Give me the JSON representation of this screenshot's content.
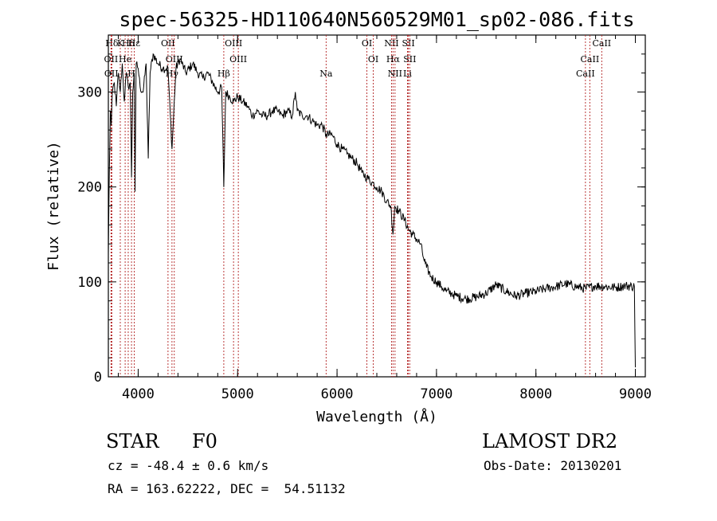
{
  "title": "spec-56325-HD110640N560529M01_sp02-086.fits",
  "footer": {
    "class": "STAR",
    "subclass": "F0",
    "survey": "LAMOST DR2",
    "cz": "cz = -48.4 ± 0.6 km/s",
    "obs_date": "Obs-Date: 20130201",
    "radec": "RA = 163.62222, DEC =  54.51132"
  },
  "chart_data": {
    "type": "line",
    "title": "spec-56325-HD110640N560529M01_sp02-086.fits",
    "xlabel": "Wavelength (Å)",
    "ylabel": "Flux (relative)",
    "xlim": [
      3700,
      9100
    ],
    "ylim": [
      0,
      360
    ],
    "xticks": [
      4000,
      5000,
      6000,
      7000,
      8000,
      9000
    ],
    "yticks": [
      0,
      100,
      200,
      300
    ],
    "grid": false,
    "line_color": "#000000",
    "marker_color": "#b22222",
    "series": [
      {
        "x": [
          3700,
          3710,
          3720,
          3730,
          3740,
          3760,
          3780,
          3800,
          3820,
          3840,
          3860,
          3880,
          3900,
          3920,
          3933,
          3945,
          3960,
          3968,
          3980,
          4000,
          4020,
          4050,
          4080,
          4101,
          4120,
          4150,
          4200,
          4250,
          4300,
          4340,
          4380,
          4420,
          4480,
          4550,
          4600,
          4650,
          4700,
          4750,
          4800,
          4840,
          4861,
          4880,
          4920,
          4960,
          5000,
          5050,
          5100,
          5150,
          5200,
          5250,
          5300,
          5350,
          5400,
          5450,
          5500,
          5550,
          5580,
          5600,
          5650,
          5700,
          5750,
          5800,
          5850,
          5890,
          5950,
          6000,
          6050,
          6100,
          6150,
          6200,
          6250,
          6300,
          6350,
          6400,
          6450,
          6500,
          6540,
          6563,
          6580,
          6620,
          6680,
          6720,
          6760,
          6800,
          6840,
          6870,
          6900,
          6950,
          7000,
          7050,
          7100,
          7150,
          7200,
          7300,
          7400,
          7500,
          7600,
          7700,
          7800,
          7900,
          8000,
          8100,
          8200,
          8300,
          8400,
          8500,
          8600,
          8700,
          8800,
          8900,
          8990,
          9000
        ],
        "values": [
          130,
          215,
          280,
          265,
          300,
          310,
          285,
          320,
          300,
          330,
          290,
          320,
          305,
          310,
          210,
          300,
          320,
          195,
          330,
          325,
          305,
          300,
          330,
          230,
          320,
          340,
          330,
          325,
          325,
          240,
          325,
          335,
          320,
          330,
          320,
          315,
          320,
          310,
          300,
          305,
          200,
          300,
          295,
          290,
          295,
          290,
          285,
          275,
          280,
          275,
          275,
          280,
          280,
          275,
          280,
          275,
          300,
          280,
          275,
          275,
          270,
          265,
          265,
          255,
          255,
          245,
          240,
          235,
          230,
          225,
          215,
          210,
          205,
          200,
          195,
          185,
          180,
          150,
          180,
          175,
          165,
          155,
          150,
          145,
          140,
          125,
          115,
          105,
          100,
          95,
          90,
          88,
          85,
          82,
          84,
          88,
          97,
          90,
          85,
          88,
          90,
          93,
          95,
          98,
          95,
          93,
          96,
          95,
          94,
          96,
          95,
          10
        ]
      }
    ],
    "line_markers": [
      {
        "label": "Hδ",
        "x": 3735,
        "row": 0
      },
      {
        "label": "K",
        "x": 3820,
        "row": 0
      },
      {
        "label": "Hδ",
        "x": 3900,
        "row": 0
      },
      {
        "label": "Hε",
        "x": 3960,
        "row": 0
      },
      {
        "label": "OII",
        "x": 3727,
        "row": 1
      },
      {
        "label": "He",
        "x": 3869,
        "row": 1
      },
      {
        "label": "OII",
        "x": 3730,
        "row": 2
      },
      {
        "label": "H",
        "x": 3933,
        "row": 2
      },
      {
        "label": "OII",
        "x": 4300,
        "row": 0
      },
      {
        "label": "OIII",
        "x": 4363,
        "row": 1
      },
      {
        "label": "Hγ",
        "x": 4340,
        "row": 2
      },
      {
        "label": "OIII",
        "x": 4959,
        "row": 0
      },
      {
        "label": "OIII",
        "x": 5007,
        "row": 1
      },
      {
        "label": "Hβ",
        "x": 4861,
        "row": 2
      },
      {
        "label": "Na",
        "x": 5890,
        "row": 2
      },
      {
        "label": "OI",
        "x": 6300,
        "row": 0
      },
      {
        "label": "OI",
        "x": 6364,
        "row": 1
      },
      {
        "label": "NII",
        "x": 6548,
        "row": 0
      },
      {
        "label": "SII",
        "x": 6717,
        "row": 0
      },
      {
        "label": "Hα",
        "x": 6563,
        "row": 1
      },
      {
        "label": "SII",
        "x": 6731,
        "row": 1
      },
      {
        "label": "NII",
        "x": 6583,
        "row": 2
      },
      {
        "label": "Li",
        "x": 6708,
        "row": 2
      },
      {
        "label": "CaII",
        "x": 8662,
        "row": 0
      },
      {
        "label": "CaII",
        "x": 8542,
        "row": 1
      },
      {
        "label": "CaII",
        "x": 8498,
        "row": 2
      }
    ]
  }
}
